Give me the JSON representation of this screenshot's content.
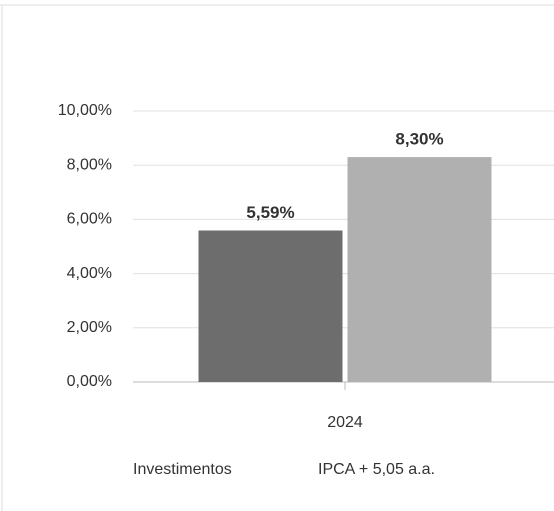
{
  "chart_data": {
    "type": "bar",
    "categories": [
      "2024"
    ],
    "series": [
      {
        "name": "Investimentos",
        "color": "#6d6d6d",
        "values": [
          5.59
        ],
        "value_labels": [
          "5,59%"
        ]
      },
      {
        "name": "IPCA + 5,05 a.a.",
        "color": "#b0b0b0",
        "values": [
          8.3
        ],
        "value_labels": [
          "8,30%"
        ]
      }
    ],
    "ylim": [
      0,
      10
    ],
    "yticks": [
      {
        "value": 0,
        "label": "0,00%"
      },
      {
        "value": 2,
        "label": "2,00%"
      },
      {
        "value": 4,
        "label": "4,00%"
      },
      {
        "value": 6,
        "label": "6,00%"
      },
      {
        "value": 8,
        "label": "8,00%"
      },
      {
        "value": 10,
        "label": "10,00%"
      }
    ],
    "grid": true
  }
}
